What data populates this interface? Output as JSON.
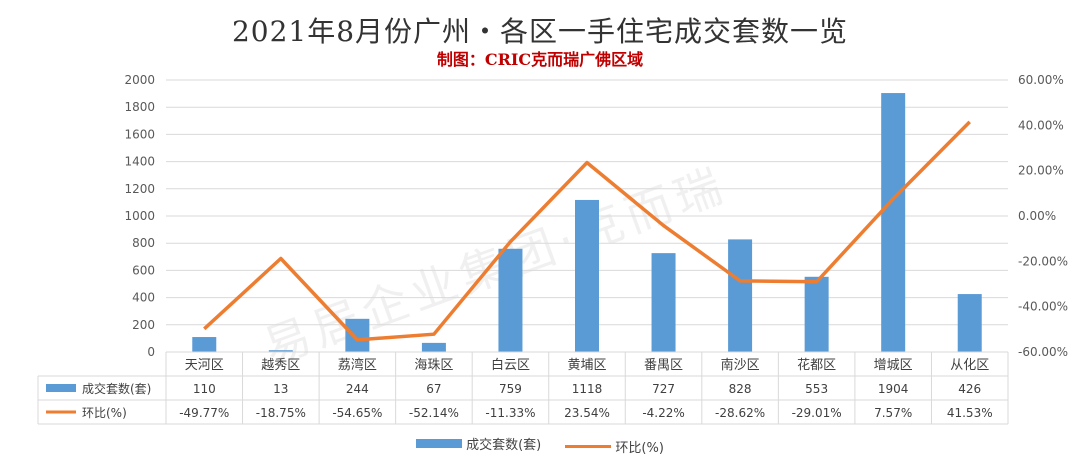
{
  "title": "2021年8月份广州・各区一手住宅成交套数一览",
  "subtitle": "制图：CRIC克而瑞广佛区域",
  "watermark": "易居企业集团·克而瑞",
  "colors": {
    "bar": "#5b9bd5",
    "line": "#ed7d31",
    "grid": "#d9d9d9",
    "text": "#595959"
  },
  "chart_data": {
    "type": "bar",
    "categories": [
      "天河区",
      "越秀区",
      "荔湾区",
      "海珠区",
      "白云区",
      "黄埔区",
      "番禺区",
      "南沙区",
      "花都区",
      "增城区",
      "从化区"
    ],
    "series": [
      {
        "name": "成交套数(套)",
        "type": "bar",
        "axis": "left",
        "values": [
          110,
          13,
          244,
          67,
          759,
          1118,
          727,
          828,
          553,
          1904,
          426
        ],
        "labels": [
          "110",
          "13",
          "244",
          "67",
          "759",
          "1118",
          "727",
          "828",
          "553",
          "1904",
          "426"
        ]
      },
      {
        "name": "环比(%)",
        "type": "line",
        "axis": "right",
        "values": [
          -49.77,
          -18.75,
          -54.65,
          -52.14,
          -11.33,
          23.54,
          -4.22,
          -28.62,
          -29.01,
          7.57,
          41.53
        ],
        "labels": [
          "-49.77%",
          "-18.75%",
          "-54.65%",
          "-52.14%",
          "-11.33%",
          "23.54%",
          "-4.22%",
          "-28.62%",
          "-29.01%",
          "7.57%",
          "41.53%"
        ]
      }
    ],
    "ylim": [
      0,
      2000
    ],
    "yticks": [
      "0",
      "200",
      "400",
      "600",
      "800",
      "1000",
      "1200",
      "1400",
      "1600",
      "1800",
      "2000"
    ],
    "y2lim": [
      -60,
      60
    ],
    "y2ticks": [
      "-60.00%",
      "-40.00%",
      "-20.00%",
      "0.00%",
      "20.00%",
      "40.00%",
      "60.00%"
    ],
    "grid": true,
    "legend_position": "bottom",
    "data_table": true
  }
}
